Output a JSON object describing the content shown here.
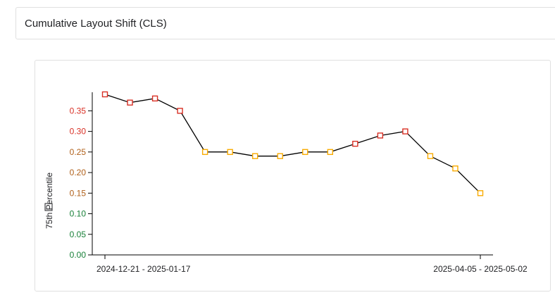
{
  "header": {
    "title": "Cumulative Layout Shift (CLS)"
  },
  "colors": {
    "good": "#188038",
    "needs_improvement": "#b0601a",
    "poor": "#d93025",
    "marker_good": "#f9ab00",
    "marker_poor": "#d93025",
    "line": "#000000"
  },
  "chart_data": {
    "type": "line",
    "title": "",
    "xlabel": "",
    "ylabel": "75th Percentile",
    "ylim": [
      0,
      0.39
    ],
    "yticks": [
      "0.00",
      "0.05",
      "0.10",
      "0.15",
      "0.20",
      "0.25",
      "0.30",
      "0.35"
    ],
    "x_tick_labels": [
      {
        "index": 0,
        "label": "2024-12-21 - 2025-01-17"
      },
      {
        "index": 15,
        "label": "2025-04-05 - 2025-05-02"
      }
    ],
    "values": [
      0.39,
      0.37,
      0.38,
      0.35,
      0.25,
      0.25,
      0.24,
      0.24,
      0.25,
      0.25,
      0.27,
      0.29,
      0.3,
      0.24,
      0.21,
      0.15
    ],
    "grid": false,
    "legend": "none"
  }
}
